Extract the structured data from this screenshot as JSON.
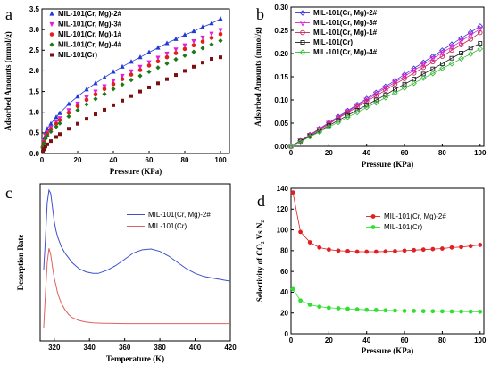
{
  "chart_data": [
    {
      "panel": "a",
      "type": "scatter",
      "xlabel": "Pressure (KPa)",
      "ylabel": "Adsorbed Amounts (mmol/g)",
      "xlim": [
        0,
        105
      ],
      "ylim": [
        0,
        3.5
      ],
      "xticks": [
        "0",
        "20",
        "40",
        "60",
        "80",
        "100"
      ],
      "yticks": [
        "0.0",
        "0.5",
        "1.0",
        "1.5",
        "2.0",
        "2.5",
        "3.0",
        "3.5"
      ],
      "legend_position": "top-left",
      "series": [
        {
          "name": "MIL-101(Cr, Mg)-2#",
          "color": "#1f3bd6",
          "marker": "triangle-up",
          "line": true,
          "x": [
            0.5,
            1,
            2,
            3,
            5,
            8,
            10,
            15,
            20,
            25,
            30,
            35,
            40,
            45,
            50,
            55,
            60,
            65,
            70,
            75,
            80,
            85,
            90,
            95,
            100
          ],
          "y": [
            0.2,
            0.34,
            0.5,
            0.6,
            0.72,
            0.88,
            0.98,
            1.2,
            1.38,
            1.55,
            1.7,
            1.84,
            1.98,
            2.1,
            2.22,
            2.33,
            2.45,
            2.56,
            2.67,
            2.77,
            2.87,
            2.96,
            3.06,
            3.15,
            3.26
          ]
        },
        {
          "name": "MIL-101(Cr, Mg)-3#",
          "color": "#e020d8",
          "marker": "triangle-down",
          "line": false,
          "x": [
            0.5,
            1,
            2,
            3,
            5,
            8,
            10,
            15,
            20,
            25,
            30,
            35,
            40,
            45,
            50,
            55,
            60,
            65,
            70,
            75,
            80,
            85,
            90,
            95,
            100
          ],
          "y": [
            0.17,
            0.3,
            0.44,
            0.52,
            0.63,
            0.77,
            0.86,
            1.05,
            1.21,
            1.36,
            1.5,
            1.63,
            1.76,
            1.88,
            1.99,
            2.1,
            2.21,
            2.32,
            2.42,
            2.52,
            2.62,
            2.72,
            2.81,
            2.9,
            2.99
          ]
        },
        {
          "name": "MIL-101(Cr, Mg)-1#",
          "color": "#e0201c",
          "marker": "circle",
          "line": false,
          "x": [
            0.5,
            1,
            2,
            3,
            5,
            8,
            10,
            15,
            20,
            25,
            30,
            35,
            40,
            45,
            50,
            55,
            60,
            65,
            70,
            75,
            80,
            85,
            90,
            95,
            100
          ],
          "y": [
            0.15,
            0.27,
            0.4,
            0.48,
            0.59,
            0.72,
            0.81,
            0.99,
            1.15,
            1.3,
            1.43,
            1.56,
            1.68,
            1.8,
            1.91,
            2.02,
            2.13,
            2.23,
            2.33,
            2.43,
            2.53,
            2.62,
            2.71,
            2.8,
            2.89
          ]
        },
        {
          "name": "MIL-101(Cr, Mg)-4#",
          "color": "#1a7a1a",
          "marker": "diamond",
          "line": false,
          "x": [
            0.5,
            1,
            2,
            3,
            5,
            8,
            10,
            15,
            20,
            25,
            30,
            35,
            40,
            45,
            50,
            55,
            60,
            65,
            70,
            75,
            80,
            85,
            90,
            95,
            100
          ],
          "y": [
            0.13,
            0.24,
            0.36,
            0.43,
            0.53,
            0.65,
            0.73,
            0.9,
            1.05,
            1.19,
            1.32,
            1.44,
            1.56,
            1.67,
            1.78,
            1.88,
            1.98,
            2.08,
            2.18,
            2.28,
            2.37,
            2.46,
            2.55,
            2.64,
            2.73
          ]
        },
        {
          "name": "MIL-101(Cr)",
          "color": "#7a1010",
          "marker": "square",
          "line": false,
          "x": [
            0.5,
            1,
            2,
            3,
            5,
            8,
            10,
            15,
            20,
            25,
            30,
            35,
            40,
            45,
            50,
            55,
            60,
            65,
            70,
            75,
            80,
            85,
            90,
            95,
            100
          ],
          "y": [
            0.05,
            0.1,
            0.17,
            0.22,
            0.3,
            0.4,
            0.47,
            0.6,
            0.72,
            0.84,
            0.95,
            1.06,
            1.17,
            1.28,
            1.39,
            1.5,
            1.6,
            1.7,
            1.8,
            1.9,
            2.0,
            2.1,
            2.2,
            2.29,
            2.33
          ]
        }
      ]
    },
    {
      "panel": "b",
      "type": "scatter",
      "xlabel": "Pressure (KPa)",
      "ylabel": "Adsorbed Amounts (mmol/g)",
      "xlim": [
        0,
        102
      ],
      "ylim": [
        0,
        0.3
      ],
      "xticks": [
        "0",
        "20",
        "40",
        "60",
        "80",
        "100"
      ],
      "yticks": [
        "0.00",
        "0.05",
        "0.10",
        "0.15",
        "0.20",
        "0.25",
        "0.30"
      ],
      "legend_position": "top-left",
      "series": [
        {
          "name": "MIL-101(Cr, Mg)-2#",
          "color": "#3a3ad8",
          "marker": "diamond-open",
          "x": [
            0,
            5,
            10,
            15,
            20,
            25,
            30,
            35,
            40,
            45,
            50,
            55,
            60,
            65,
            70,
            75,
            80,
            85,
            90,
            95,
            100
          ],
          "y": [
            0,
            0.012,
            0.025,
            0.038,
            0.051,
            0.064,
            0.077,
            0.09,
            0.103,
            0.116,
            0.129,
            0.142,
            0.155,
            0.168,
            0.181,
            0.194,
            0.207,
            0.22,
            0.233,
            0.246,
            0.259
          ]
        },
        {
          "name": "MIL-101(Cr, Mg)-3#",
          "color": "#e020d8",
          "marker": "triangle-down-open",
          "x": [
            0,
            5,
            10,
            15,
            20,
            25,
            30,
            35,
            40,
            45,
            50,
            55,
            60,
            65,
            70,
            75,
            80,
            85,
            90,
            95,
            100
          ],
          "y": [
            0,
            0.012,
            0.024,
            0.037,
            0.05,
            0.062,
            0.075,
            0.088,
            0.1,
            0.113,
            0.126,
            0.138,
            0.151,
            0.164,
            0.176,
            0.189,
            0.202,
            0.214,
            0.227,
            0.24,
            0.253
          ]
        },
        {
          "name": "MIL-101(Cr, Mg)-1#",
          "color": "#c8285a",
          "marker": "circle-open",
          "x": [
            0,
            5,
            10,
            15,
            20,
            25,
            30,
            35,
            40,
            45,
            50,
            55,
            60,
            65,
            70,
            75,
            80,
            85,
            90,
            95,
            100
          ],
          "y": [
            0,
            0.012,
            0.024,
            0.036,
            0.048,
            0.061,
            0.073,
            0.085,
            0.097,
            0.109,
            0.121,
            0.134,
            0.146,
            0.158,
            0.17,
            0.182,
            0.194,
            0.207,
            0.219,
            0.231,
            0.245
          ]
        },
        {
          "name": "MIL-101(Cr)",
          "color": "#202020",
          "marker": "square-open",
          "x": [
            0,
            5,
            10,
            15,
            20,
            25,
            30,
            35,
            40,
            45,
            50,
            55,
            60,
            65,
            70,
            75,
            80,
            85,
            90,
            95,
            100
          ],
          "y": [
            0,
            0.011,
            0.022,
            0.033,
            0.045,
            0.056,
            0.067,
            0.078,
            0.089,
            0.1,
            0.111,
            0.123,
            0.134,
            0.145,
            0.156,
            0.167,
            0.178,
            0.19,
            0.201,
            0.212,
            0.222
          ]
        },
        {
          "name": "MIL-101(Cr, Mg)-4#",
          "color": "#3aba3a",
          "marker": "diamond-open",
          "x": [
            0,
            5,
            10,
            15,
            20,
            25,
            30,
            35,
            40,
            45,
            50,
            55,
            60,
            65,
            70,
            75,
            80,
            85,
            90,
            95,
            100
          ],
          "y": [
            0,
            0.01,
            0.021,
            0.031,
            0.042,
            0.052,
            0.063,
            0.073,
            0.084,
            0.094,
            0.105,
            0.115,
            0.126,
            0.136,
            0.147,
            0.157,
            0.168,
            0.178,
            0.189,
            0.199,
            0.21
          ]
        }
      ]
    },
    {
      "panel": "c",
      "type": "line",
      "xlabel": "Temperature (K)",
      "ylabel": "Desorption Rate",
      "xlim": [
        312,
        420
      ],
      "ylim": [
        0,
        1
      ],
      "xticks": [
        "320",
        "340",
        "360",
        "380",
        "400",
        "420"
      ],
      "yticks": [],
      "legend_position": "top-right",
      "series": [
        {
          "name": "MIL-101(Cr, Mg)-2#",
          "color": "#4050c8",
          "x": [
            314,
            315,
            316,
            317,
            318,
            319,
            320,
            321,
            322,
            324,
            326,
            328,
            330,
            334,
            338,
            342,
            345,
            350,
            355,
            360,
            365,
            370,
            375,
            380,
            385,
            390,
            395,
            400,
            405,
            410,
            415,
            420
          ],
          "y": [
            0.45,
            0.65,
            0.88,
            0.96,
            0.94,
            0.85,
            0.76,
            0.7,
            0.66,
            0.6,
            0.56,
            0.53,
            0.5,
            0.46,
            0.44,
            0.43,
            0.43,
            0.45,
            0.48,
            0.52,
            0.56,
            0.58,
            0.585,
            0.57,
            0.54,
            0.5,
            0.46,
            0.43,
            0.41,
            0.4,
            0.39,
            0.38
          ]
        },
        {
          "name": "MIL-101(Cr)",
          "color": "#e06060",
          "x": [
            314,
            315,
            316,
            317,
            318,
            319,
            320,
            321,
            322,
            324,
            326,
            328,
            330,
            334,
            338,
            342,
            346,
            350,
            360,
            370,
            380,
            390,
            400,
            410,
            420
          ],
          "y": [
            0.08,
            0.3,
            0.5,
            0.59,
            0.55,
            0.47,
            0.4,
            0.35,
            0.3,
            0.24,
            0.2,
            0.17,
            0.15,
            0.13,
            0.12,
            0.115,
            0.113,
            0.112,
            0.11,
            0.11,
            0.11,
            0.11,
            0.11,
            0.11,
            0.11
          ]
        }
      ]
    },
    {
      "panel": "d",
      "type": "line",
      "xlabel": "Pressure (KPa)",
      "ylabel": "Selectivity of CO₂ Vs N₂",
      "xlim": [
        0,
        102
      ],
      "ylim": [
        0,
        140
      ],
      "xticks": [
        "0",
        "20",
        "40",
        "60",
        "80",
        "100"
      ],
      "yticks": [
        "0",
        "20",
        "40",
        "60",
        "80",
        "100",
        "120",
        "140"
      ],
      "legend_position": "top-right",
      "series": [
        {
          "name": "MIL-101(Cr, Mg)-2#",
          "color": "#e02020",
          "x": [
            1,
            5,
            10,
            15,
            20,
            25,
            30,
            35,
            40,
            45,
            50,
            55,
            60,
            65,
            70,
            75,
            80,
            85,
            90,
            95,
            100
          ],
          "y": [
            136,
            98,
            88,
            83,
            81,
            80,
            79.5,
            79,
            79,
            79,
            79.2,
            79.5,
            80,
            80.5,
            81,
            81.5,
            82,
            83,
            83.5,
            84.5,
            85.5
          ]
        },
        {
          "name": "MIL-101(Cr)",
          "color": "#30e030",
          "x": [
            1,
            5,
            10,
            15,
            20,
            25,
            30,
            35,
            40,
            45,
            50,
            55,
            60,
            65,
            70,
            75,
            80,
            85,
            90,
            95,
            100
          ],
          "y": [
            43,
            32,
            28,
            26,
            25,
            24.5,
            24,
            23.5,
            23,
            22.8,
            22.5,
            22.3,
            22,
            22,
            21.8,
            21.7,
            21.6,
            21.5,
            21.4,
            21.3,
            21.2
          ]
        }
      ]
    }
  ]
}
